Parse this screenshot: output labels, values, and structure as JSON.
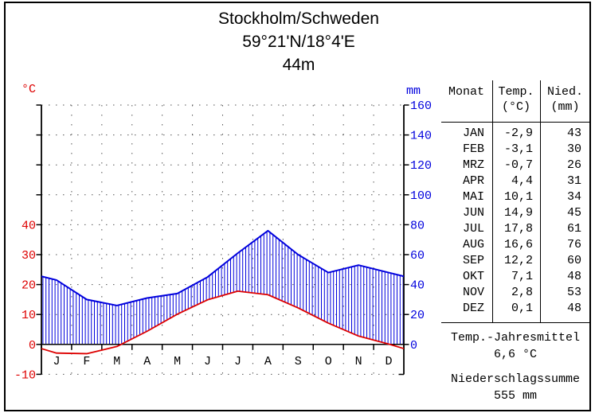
{
  "header": {
    "title": "Stockholm/Schweden",
    "coordinates": "59°21'N/18°4'E",
    "elevation": "44m"
  },
  "chart_data": {
    "type": "line",
    "title": "Stockholm/Schweden",
    "categories": [
      "J",
      "F",
      "M",
      "A",
      "M",
      "J",
      "J",
      "A",
      "S",
      "O",
      "N",
      "D"
    ],
    "series": [
      {
        "name": "Temperatur",
        "unit": "°C",
        "color": "#dd0000",
        "values": [
          -2.9,
          -3.1,
          -0.7,
          4.4,
          10.1,
          14.9,
          17.8,
          16.6,
          12.2,
          7.1,
          2.8,
          0.1
        ]
      },
      {
        "name": "Niederschlag",
        "unit": "mm",
        "color": "#0000dd",
        "values": [
          43,
          30,
          26,
          31,
          34,
          45,
          61,
          76,
          60,
          48,
          53,
          48
        ]
      }
    ],
    "y_left": {
      "unit": "°C",
      "color": "#dd0000",
      "ticks": [
        40,
        30,
        20,
        10,
        0,
        -10
      ]
    },
    "y_right": {
      "unit": "mm",
      "color": "#0000dd",
      "ticks": [
        160,
        140,
        120,
        100,
        80,
        60,
        40,
        20,
        0
      ]
    },
    "axis_range_mm": [
      -20,
      160
    ],
    "scale_rule": "10°C = 20mm",
    "grid": "dotted",
    "fill": "vertical-blue-hatching-between-precipitation-and-temperature"
  },
  "table": {
    "headers": {
      "month": "Monat",
      "temp": "Temp.",
      "temp_unit": "(°C)",
      "precip": "Nied.",
      "precip_unit": "(mm)"
    },
    "rows": [
      [
        "JAN",
        "-2,9",
        "43"
      ],
      [
        "FEB",
        "-3,1",
        "30"
      ],
      [
        "MRZ",
        "-0,7",
        "26"
      ],
      [
        "APR",
        "4,4",
        "31"
      ],
      [
        "MAI",
        "10,1",
        "34"
      ],
      [
        "JUN",
        "14,9",
        "45"
      ],
      [
        "JUL",
        "17,8",
        "61"
      ],
      [
        "AUG",
        "16,6",
        "76"
      ],
      [
        "SEP",
        "12,2",
        "60"
      ],
      [
        "OKT",
        "7,1",
        "48"
      ],
      [
        "NOV",
        "2,8",
        "53"
      ],
      [
        "DEZ",
        "0,1",
        "48"
      ]
    ]
  },
  "summary": {
    "temp_label": "Temp.-Jahresmittel",
    "temp_value": "6,6 °C",
    "precip_label": "Niederschlagssumme",
    "precip_value": "555 mm"
  }
}
